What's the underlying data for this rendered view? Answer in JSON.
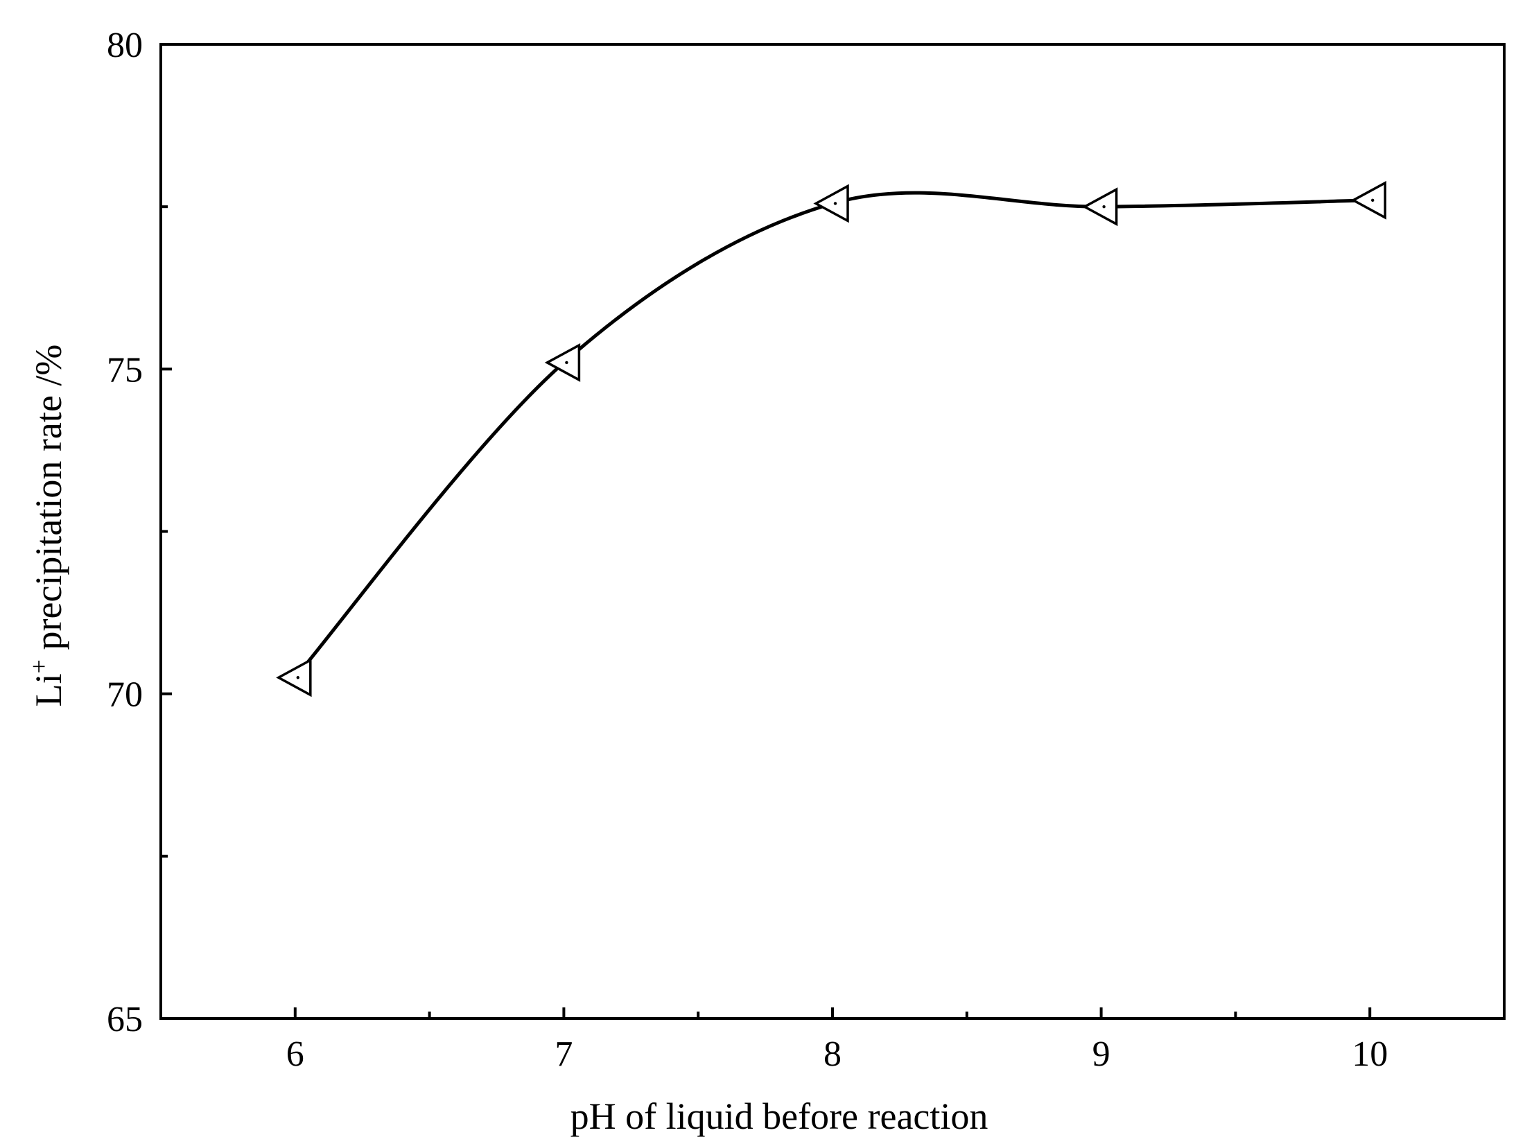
{
  "chart_data": {
    "type": "line",
    "title": "",
    "xlabel": "pH of liquid before reaction",
    "ylabel": {
      "base": "Li",
      "superscript": "+",
      "rest": " precipitation rate /%"
    },
    "xlim": [
      5.5,
      10.5
    ],
    "ylim": [
      65,
      80
    ],
    "x_ticks": [
      6,
      7,
      8,
      9,
      10
    ],
    "x_tick_labels": [
      "6",
      "7",
      "8",
      "9",
      "10"
    ],
    "x_minor_ticks": [
      6.5,
      7.5,
      8.5,
      9.5
    ],
    "y_ticks": [
      65,
      70,
      75,
      80
    ],
    "y_tick_labels": [
      "65",
      "70",
      "75",
      "80"
    ],
    "y_minor_ticks": [
      67.5,
      72.5,
      77.5
    ],
    "grid": false,
    "legend": "none",
    "marker": "left-pointing triangle",
    "line_color": "#000000",
    "series": [
      {
        "x": [
          6,
          7,
          8,
          9,
          10
        ],
        "values": [
          70.25,
          75.1,
          77.55,
          77.5,
          77.6
        ]
      }
    ]
  }
}
